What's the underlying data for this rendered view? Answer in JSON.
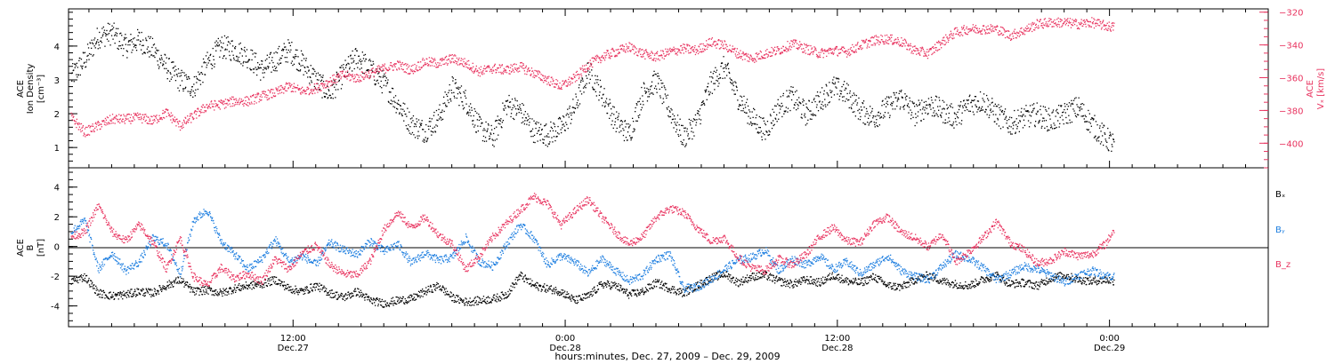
{
  "figure": {
    "x_axis_title": "hours:minutes, Dec. 27, 2009 – Dec. 29, 2009",
    "x_ticks": [
      {
        "hours": 12,
        "time": "12:00",
        "date": "Dec.27"
      },
      {
        "hours": 24,
        "time": "0:00",
        "date": "Dec.28"
      },
      {
        "hours": 36,
        "time": "12:00",
        "date": "Dec.28"
      },
      {
        "hours": 48,
        "time": "0:00",
        "date": "Dec.29"
      }
    ],
    "x_range_hours": [
      2.1,
      55.0
    ],
    "x_minor_step_hours": 1
  },
  "colors": {
    "black": "#000000",
    "red": "#e8335f",
    "blue": "#1f7fe0"
  },
  "chart_data": [
    {
      "type": "scatter",
      "panel": "top",
      "ylabel_lines": [
        "ACE",
        "Ion Density",
        "[cm⁻³]"
      ],
      "ylim": [
        0.4,
        5.1
      ],
      "yticks": [
        1,
        2,
        3,
        4
      ],
      "right_axis": {
        "label_lines": [
          "ACE",
          "Vₓ [km/s]"
        ],
        "ylim": [
          -415,
          -318
        ],
        "yticks": [
          -400,
          -380,
          -360,
          -340,
          -320
        ],
        "tick_labels": [
          "−400",
          "−380",
          "−360",
          "−340",
          "−320"
        ]
      },
      "series": [
        {
          "axis": "left",
          "color": "#000000",
          "x_hours": [
            2.2,
            2.8,
            3.4,
            4,
            4.6,
            5.2,
            5.8,
            6.4,
            7,
            7.6,
            8.2,
            8.8,
            9.4,
            10,
            10.6,
            11.2,
            11.8,
            12.4,
            13,
            13.6,
            14.2,
            14.8,
            15.4,
            16,
            16.6,
            17.2,
            17.8,
            18.4,
            19,
            19.6,
            20.2,
            20.8,
            21.4,
            22,
            22.6,
            23.2,
            23.8,
            24.4,
            25,
            25.6,
            26.2,
            26.8,
            27.4,
            28,
            28.6,
            29.2,
            29.8,
            30.4,
            31,
            31.6,
            32.2,
            32.8,
            33.4,
            34,
            34.6,
            35.2,
            35.8,
            36.4,
            37,
            37.6,
            38.2,
            38.8,
            39.4,
            40,
            40.6,
            41.2,
            41.8,
            42.4,
            43,
            43.6,
            44.2,
            44.8,
            45.4,
            46,
            46.6,
            47.2,
            47.8,
            48.2
          ],
          "values": [
            3.1,
            3.6,
            4.3,
            4.4,
            4.0,
            4.2,
            3.9,
            3.4,
            3.0,
            2.8,
            3.5,
            4.0,
            3.9,
            3.7,
            3.3,
            3.6,
            3.9,
            3.5,
            3.0,
            2.6,
            3.2,
            3.7,
            3.3,
            2.9,
            2.3,
            1.7,
            1.5,
            1.9,
            2.8,
            2.4,
            1.6,
            1.3,
            2.3,
            2.1,
            1.5,
            1.4,
            1.6,
            2.2,
            3.3,
            2.6,
            1.8,
            1.4,
            2.6,
            3.0,
            2.1,
            1.3,
            1.8,
            2.9,
            3.4,
            2.5,
            1.9,
            1.5,
            2.2,
            2.5,
            2.0,
            2.4,
            2.8,
            2.6,
            2.1,
            1.9,
            2.2,
            2.5,
            2.0,
            2.3,
            2.1,
            1.9,
            2.3,
            2.4,
            2.0,
            1.7,
            1.9,
            2.0,
            1.8,
            2.0,
            2.2,
            1.7,
            1.3,
            1.1
          ]
        },
        {
          "axis": "right",
          "color": "#e8335f",
          "x_hours": [
            2.2,
            2.8,
            3.4,
            4,
            4.6,
            5.2,
            5.8,
            6.4,
            7,
            7.6,
            8.2,
            8.8,
            9.4,
            10,
            10.6,
            11.2,
            11.8,
            12.4,
            13,
            13.6,
            14.2,
            14.8,
            15.4,
            16,
            16.6,
            17.2,
            17.8,
            18.4,
            19,
            19.6,
            20.2,
            20.8,
            21.4,
            22,
            22.6,
            23.2,
            23.8,
            24.4,
            25,
            25.6,
            26.2,
            26.8,
            27.4,
            28,
            28.6,
            29.2,
            29.8,
            30.4,
            31,
            31.6,
            32.2,
            32.8,
            33.4,
            34,
            34.6,
            35.2,
            35.8,
            36.4,
            37,
            37.6,
            38.2,
            38.8,
            39.4,
            40,
            40.6,
            41.2,
            41.8,
            42.4,
            43,
            43.6,
            44.2,
            44.8,
            45.4,
            46,
            46.6,
            47.2,
            47.8,
            48.2
          ],
          "values": [
            -384,
            -393,
            -389,
            -385,
            -385,
            -384,
            -386,
            -381,
            -389,
            -383,
            -377,
            -376,
            -374,
            -374,
            -371,
            -369,
            -365,
            -368,
            -366,
            -362,
            -358,
            -360,
            -357,
            -354,
            -352,
            -355,
            -350,
            -351,
            -348,
            -351,
            -356,
            -354,
            -355,
            -353,
            -357,
            -361,
            -365,
            -360,
            -352,
            -347,
            -344,
            -341,
            -345,
            -347,
            -344,
            -342,
            -343,
            -338,
            -340,
            -345,
            -348,
            -345,
            -343,
            -339,
            -342,
            -345,
            -343,
            -344,
            -340,
            -337,
            -336,
            -338,
            -343,
            -345,
            -338,
            -332,
            -330,
            -330,
            -330,
            -334,
            -331,
            -327,
            -326,
            -326,
            -327,
            -326,
            -328,
            -329
          ]
        }
      ]
    },
    {
      "type": "scatter",
      "panel": "bottom",
      "ylabel_lines": [
        "ACE",
        "B",
        "[nT]"
      ],
      "ylim": [
        -5.4,
        5.3
      ],
      "yticks": [
        -4,
        -2,
        0,
        2,
        4
      ],
      "zero_line": true,
      "series": [
        {
          "name": "Bₓ",
          "color": "#000000",
          "x_hours": [
            2.2,
            2.8,
            3.4,
            4,
            4.6,
            5.2,
            5.8,
            6.4,
            7,
            7.6,
            8.2,
            8.8,
            9.4,
            10,
            10.6,
            11.2,
            11.8,
            12.4,
            13,
            13.6,
            14.2,
            14.8,
            15.4,
            16,
            16.6,
            17.2,
            17.8,
            18.4,
            19,
            19.6,
            20.2,
            20.8,
            21.4,
            22,
            22.6,
            23.2,
            23.8,
            24.4,
            25,
            25.6,
            26.2,
            26.8,
            27.4,
            28,
            28.6,
            29.2,
            29.8,
            30.4,
            31,
            31.6,
            32.2,
            32.8,
            33.4,
            34,
            34.6,
            35.2,
            35.8,
            36.4,
            37,
            37.6,
            38.2,
            38.8,
            39.4,
            40,
            40.6,
            41.2,
            41.8,
            42.4,
            43,
            43.6,
            44.2,
            44.8,
            45.4,
            46,
            46.6,
            47.2,
            47.8,
            48.2
          ],
          "values": [
            -2.3,
            -2.0,
            -3.1,
            -3.3,
            -3.2,
            -3.0,
            -3.1,
            -2.6,
            -2.2,
            -3.0,
            -2.9,
            -3.1,
            -2.8,
            -2.6,
            -2.5,
            -2.2,
            -2.8,
            -3.0,
            -2.6,
            -3.1,
            -3.4,
            -3.0,
            -3.6,
            -3.8,
            -3.6,
            -3.5,
            -3.0,
            -2.6,
            -3.4,
            -3.7,
            -3.6,
            -3.5,
            -3.2,
            -1.9,
            -2.6,
            -2.8,
            -3.0,
            -3.6,
            -3.3,
            -2.5,
            -2.6,
            -3.2,
            -3.0,
            -2.4,
            -2.8,
            -3.1,
            -2.6,
            -2.1,
            -1.8,
            -2.4,
            -2.0,
            -1.9,
            -2.3,
            -2.5,
            -2.2,
            -2.4,
            -1.9,
            -2.3,
            -2.4,
            -2.0,
            -2.6,
            -2.7,
            -2.2,
            -1.9,
            -2.3,
            -2.5,
            -2.6,
            -2.2,
            -1.9,
            -2.5,
            -2.4,
            -2.6,
            -2.1,
            -1.9,
            -2.2,
            -2.3,
            -2.2,
            -2.3
          ]
        },
        {
          "name": "Bᵧ",
          "color": "#1f7fe0",
          "x_hours": [
            2.2,
            2.8,
            3.4,
            4,
            4.6,
            5.2,
            5.8,
            6.4,
            7,
            7.6,
            8.2,
            8.8,
            9.4,
            10,
            10.6,
            11.2,
            11.8,
            12.4,
            13,
            13.6,
            14.2,
            14.8,
            15.4,
            16,
            16.6,
            17.2,
            17.8,
            18.4,
            19,
            19.6,
            20.2,
            20.8,
            21.4,
            22,
            22.6,
            23.2,
            23.8,
            24.4,
            25,
            25.6,
            26.2,
            26.8,
            27.4,
            28,
            28.6,
            29.2,
            29.8,
            30.4,
            31,
            31.6,
            32.2,
            32.8,
            33.4,
            34,
            34.6,
            35.2,
            35.8,
            36.4,
            37,
            37.6,
            38.2,
            38.8,
            39.4,
            40,
            40.6,
            41.2,
            41.8,
            42.4,
            43,
            43.6,
            44.2,
            44.8,
            45.4,
            46,
            46.6,
            47.2,
            47.8,
            48.2
          ],
          "values": [
            1.0,
            1.8,
            -1.5,
            -0.4,
            -1.6,
            -1.0,
            0.6,
            0.2,
            -1.8,
            1.8,
            2.5,
            0.4,
            -0.5,
            -1.5,
            -0.8,
            0.5,
            -1.0,
            -0.6,
            -1.2,
            0.3,
            -0.2,
            -0.5,
            0.4,
            -0.3,
            0.2,
            -1.1,
            -0.4,
            -0.9,
            -0.7,
            0.6,
            -1.0,
            -1.3,
            0.2,
            1.5,
            0.6,
            -1.2,
            -0.6,
            -1.0,
            -1.8,
            -0.8,
            -1.6,
            -2.3,
            -1.9,
            -0.8,
            -0.5,
            -2.8,
            -2.7,
            -2.2,
            -1.5,
            -0.9,
            -0.7,
            -0.2,
            -1.6,
            -0.8,
            -1.2,
            -0.6,
            -1.5,
            -1.0,
            -1.8,
            -1.2,
            -0.6,
            -1.6,
            -2.0,
            -2.2,
            -1.3,
            -0.5,
            -0.8,
            -1.4,
            -2.2,
            -1.8,
            -1.3,
            -1.5,
            -1.9,
            -2.4,
            -1.9,
            -1.6,
            -1.9,
            -2.0
          ]
        },
        {
          "name": "B_z",
          "color": "#e8335f",
          "x_hours": [
            2.2,
            2.8,
            3.4,
            4,
            4.6,
            5.2,
            5.8,
            6.4,
            7,
            7.6,
            8.2,
            8.8,
            9.4,
            10,
            10.6,
            11.2,
            11.8,
            12.4,
            13,
            13.6,
            14.2,
            14.8,
            15.4,
            16,
            16.6,
            17.2,
            17.8,
            18.4,
            19,
            19.6,
            20.2,
            20.8,
            21.4,
            22,
            22.6,
            23.2,
            23.8,
            24.4,
            25,
            25.6,
            26.2,
            26.8,
            27.4,
            28,
            28.6,
            29.2,
            29.8,
            30.4,
            31,
            31.6,
            32.2,
            32.8,
            33.4,
            34,
            34.6,
            35.2,
            35.8,
            36.4,
            37,
            37.6,
            38.2,
            38.8,
            39.4,
            40,
            40.6,
            41.2,
            41.8,
            42.4,
            43,
            43.6,
            44.2,
            44.8,
            45.4,
            46,
            46.6,
            47.2,
            47.8,
            48.2
          ],
          "values": [
            0.7,
            1.0,
            2.8,
            1.0,
            0.4,
            1.5,
            0.3,
            -1.5,
            0.6,
            -2.0,
            -2.6,
            -1.4,
            -2.1,
            -1.8,
            -2.3,
            -0.8,
            -1.5,
            -0.4,
            0.1,
            -1.2,
            -1.8,
            -1.9,
            -0.9,
            1.2,
            2.3,
            1.3,
            2.0,
            0.8,
            0.2,
            -1.5,
            -0.6,
            0.7,
            1.6,
            2.5,
            3.4,
            2.9,
            1.5,
            2.4,
            3.2,
            2.0,
            1.0,
            0.2,
            0.7,
            2.0,
            2.6,
            2.3,
            1.3,
            0.4,
            0.6,
            -0.7,
            -1.4,
            -1.6,
            -0.8,
            -1.2,
            -0.5,
            0.7,
            1.3,
            0.4,
            0.3,
            1.6,
            2.0,
            1.0,
            0.6,
            0.0,
            0.9,
            -1.0,
            -0.3,
            0.6,
            1.7,
            0.3,
            -0.2,
            -1.1,
            -0.9,
            -0.3,
            -0.6,
            -0.5,
            0.2,
            1.2
          ]
        }
      ]
    }
  ]
}
